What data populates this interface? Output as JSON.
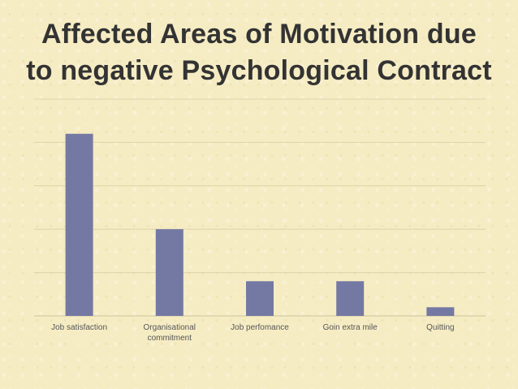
{
  "title_lines": [
    "Affected Areas of Motivation due",
    "to negative Psychological Contract"
  ],
  "colors": {
    "background": "#f6ecc3",
    "bar": "#7479a3",
    "grid": "#ddd2ab",
    "axis": "#cfc39c",
    "title": "#333333",
    "tick_label": "#555555"
  },
  "chart_data": {
    "type": "bar",
    "title": "Affected Areas of Motivation due to negative Psychological Contract",
    "categories": [
      [
        "Job satisfaction"
      ],
      [
        "Organisational",
        "commitment"
      ],
      [
        "Job perfomance"
      ],
      [
        "Goin extra mile"
      ],
      [
        "Quitting"
      ]
    ],
    "values": [
      42,
      20,
      8,
      8,
      2
    ],
    "ylim": [
      0,
      50
    ],
    "y_gridlines": [
      10,
      20,
      30,
      40,
      50
    ],
    "grid": true,
    "legend": "none",
    "xlabel": "",
    "ylabel": ""
  }
}
